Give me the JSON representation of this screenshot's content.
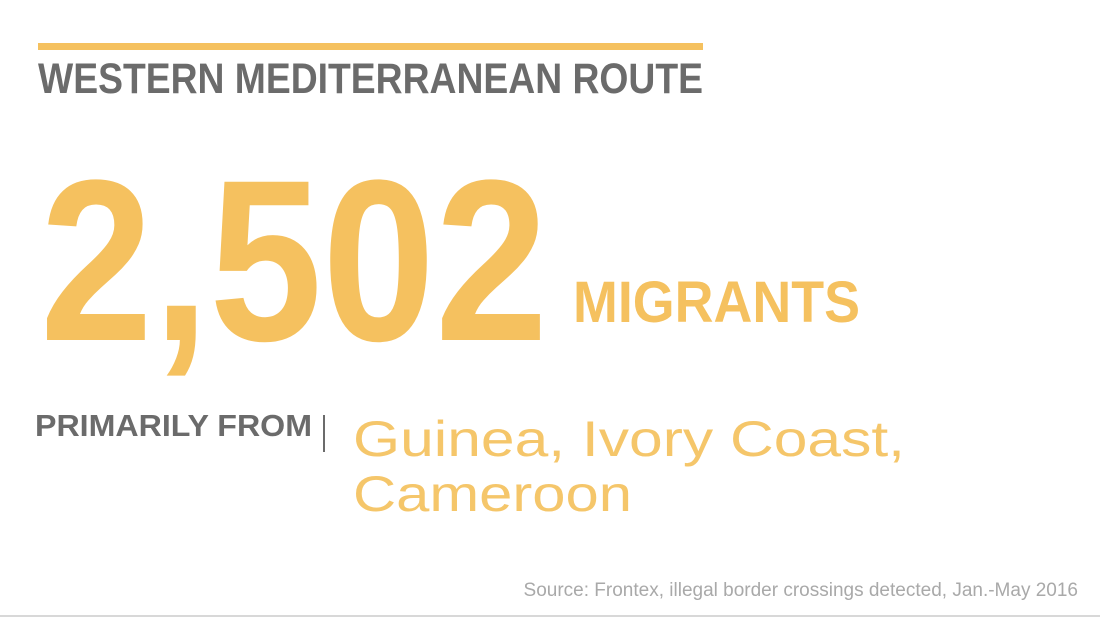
{
  "header": {
    "title": "WESTERN MEDITERRANEAN ROUTE"
  },
  "stat": {
    "number": "2,502",
    "unit": "MIGRANTS"
  },
  "origin": {
    "label": "PRIMARILY FROM",
    "lines": [
      "Guinea, Ivory Coast,",
      "Cameroon"
    ]
  },
  "footer": {
    "source": "Source: Frontex, illegal border crossings detected, Jan.-May 2016"
  }
}
